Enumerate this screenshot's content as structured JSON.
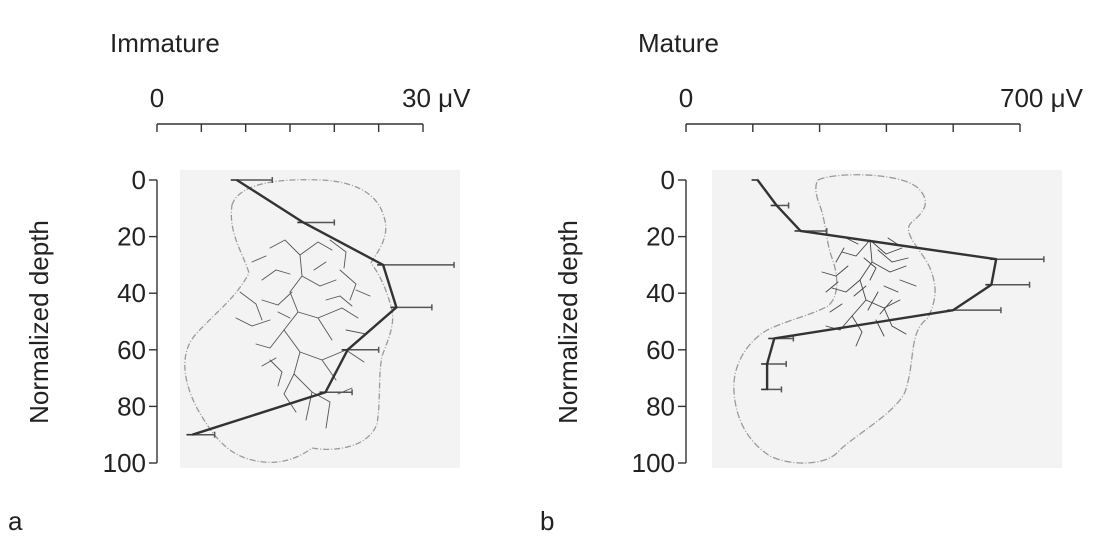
{
  "chart_data": [
    {
      "panel_label": "a",
      "type": "line",
      "title": "Immature",
      "xlabel": "",
      "x_tick_labels": [
        "0",
        "30 μV"
      ],
      "xlim": [
        0,
        30
      ],
      "x_minor_ticks": 6,
      "ylabel": "Normalized depth",
      "y_tick_labels": [
        "0",
        "20",
        "40",
        "60",
        "80",
        "100"
      ],
      "ylim": [
        0,
        100
      ],
      "y_inverted": true,
      "series": [
        {
          "depth": [
            0,
            15,
            30,
            45,
            60,
            75,
            90
          ],
          "value": [
            9,
            16.5,
            25.5,
            27,
            21.5,
            19,
            4
          ],
          "error": [
            4,
            3.5,
            8,
            4,
            3.5,
            3,
            2.5
          ]
        }
      ],
      "background_image": "reconstructed neuron morphology with dendritic arbor"
    },
    {
      "panel_label": "b",
      "type": "line",
      "title": "Mature",
      "xlabel": "",
      "x_tick_labels": [
        "0",
        "700 μV"
      ],
      "xlim": [
        0,
        700
      ],
      "x_minor_ticks": 5,
      "ylabel": "Normalized depth",
      "y_tick_labels": [
        "0",
        "20",
        "40",
        "60",
        "80",
        "100"
      ],
      "ylim": [
        0,
        100
      ],
      "y_inverted": true,
      "series": [
        {
          "depth": [
            0,
            9,
            18,
            28,
            37,
            46,
            56,
            65,
            74
          ],
          "value": [
            150,
            190,
            240,
            650,
            640,
            560,
            185,
            170,
            170
          ],
          "error": [
            0,
            25,
            55,
            100,
            80,
            100,
            40,
            40,
            30
          ]
        }
      ],
      "background_image": "reconstructed neuron morphology with dendritic arbor"
    }
  ]
}
